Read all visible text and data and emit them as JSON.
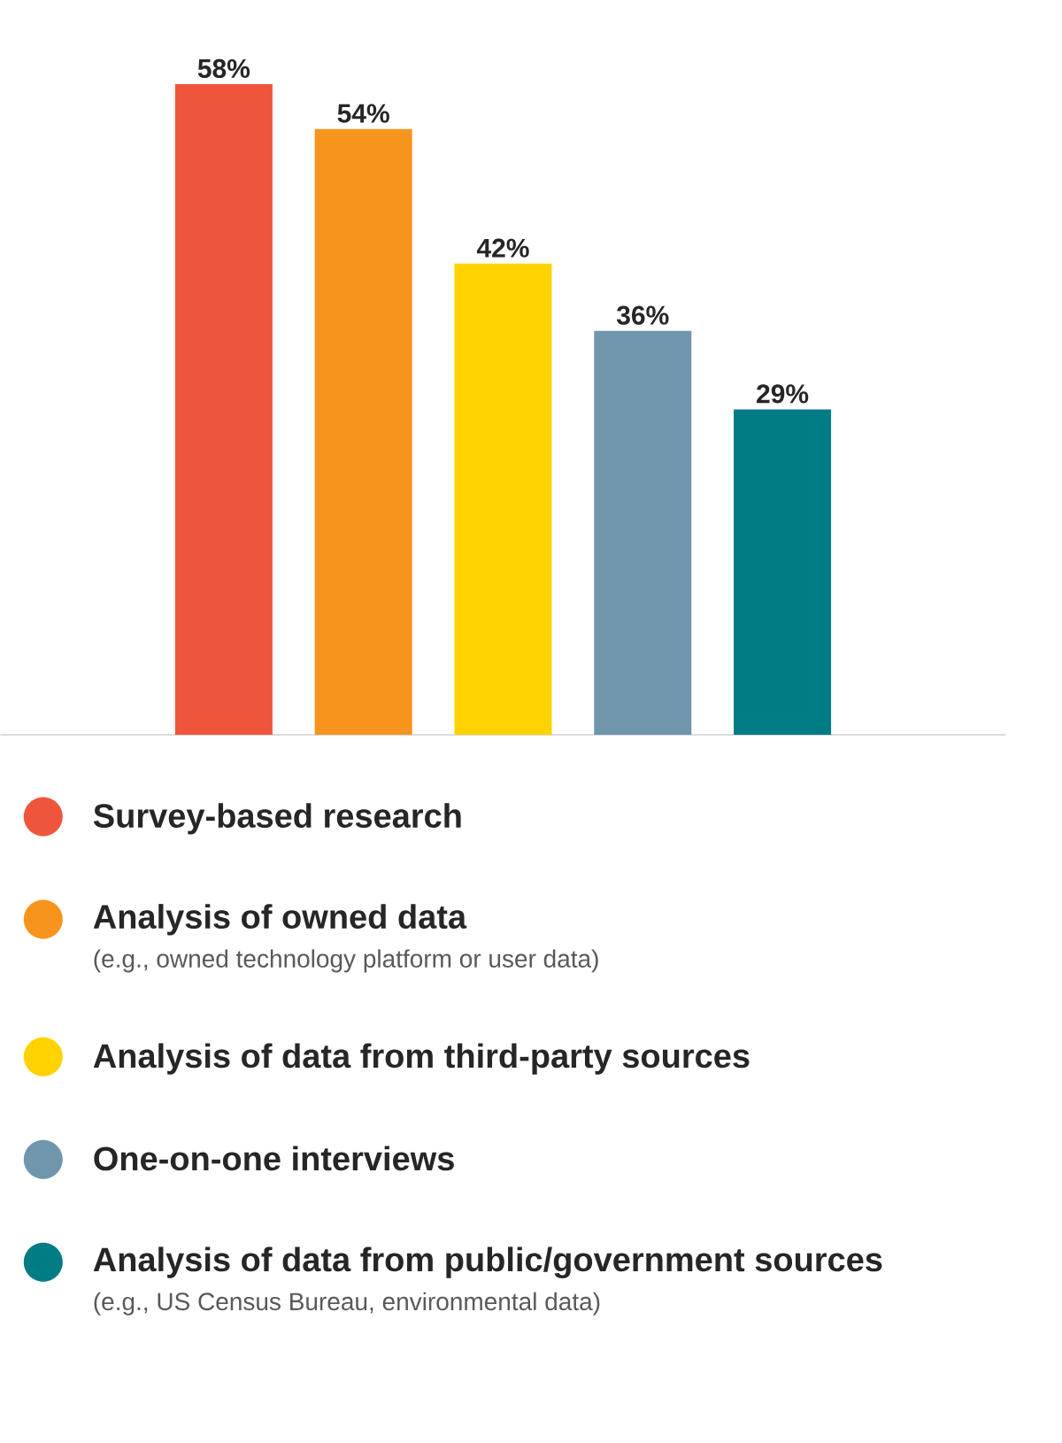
{
  "chart_data": {
    "type": "bar",
    "categories": [
      null,
      null,
      null,
      null,
      null
    ],
    "series": [
      {
        "name": "Survey-based research",
        "color": "#ef553b",
        "values": [
          58,
          null,
          null,
          null,
          null
        ],
        "value_labels": [
          "58%",
          null,
          null,
          null,
          null
        ]
      },
      {
        "name": "Analysis of owned data",
        "color": "#f7941d",
        "values": [
          null,
          54,
          null,
          null,
          null
        ],
        "value_labels": [
          null,
          "54%",
          null,
          null,
          null
        ]
      },
      {
        "name": "Analysis of data from third-party sources",
        "color": "#ffd200",
        "values": [
          null,
          null,
          42,
          null,
          null
        ],
        "value_labels": [
          null,
          null,
          "42%",
          null,
          null
        ]
      },
      {
        "name": "One-on-one interviews",
        "color": "#7096ad",
        "values": [
          null,
          null,
          null,
          36,
          null
        ],
        "value_labels": [
          null,
          null,
          null,
          "36%",
          null
        ]
      },
      {
        "name": "Analysis of data from public/government sources",
        "color": "#007c85",
        "values": [
          null,
          null,
          null,
          null,
          29
        ],
        "value_labels": [
          null,
          null,
          null,
          null,
          "29%"
        ]
      }
    ],
    "stacked": true,
    "legend": "bottom",
    "annotations": [
      "(e.g., owned technology platform or user data)",
      "(e.g., US Census Bureau, environmental data)"
    ]
  }
}
